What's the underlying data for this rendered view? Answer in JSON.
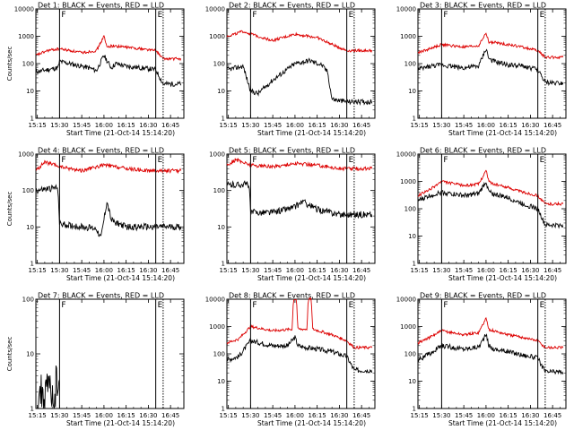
{
  "colors": {
    "events": "#000000",
    "lld": "#dd0000",
    "axis": "#000000",
    "background": "#ffffff"
  },
  "chart_data": [
    {
      "type": "line",
      "title": "Det 1: BLACK = Events, RED = LLD",
      "xlabel": "Start Time (21-Oct-14 15:14:20)",
      "ylabel": "Counts/sec",
      "xticks": [
        "15:15",
        "15:30",
        "15:45",
        "16:00",
        "16:15",
        "16:30",
        "16:45"
      ],
      "yticks": [
        "1",
        "10",
        "100",
        "1000",
        "10000"
      ],
      "yscale": "log",
      "ylim": [
        1,
        10000
      ],
      "xlim_minutes": [
        "15:14",
        "16:54"
      ],
      "markers": [
        {
          "time": "15:30",
          "label": "F",
          "style": "solid"
        },
        {
          "time": "16:35",
          "label": "E",
          "style": "solid"
        },
        {
          "time": "16:40",
          "label": "",
          "style": "dotted"
        }
      ],
      "series": [
        {
          "name": "Events",
          "color": "#000000",
          "x": [
            "15:14",
            "15:22",
            "15:29",
            "15:30",
            "15:50",
            "15:55",
            "16:00",
            "16:02",
            "16:05",
            "16:08",
            "16:15",
            "16:25",
            "16:35",
            "16:40",
            "16:52"
          ],
          "values": [
            50,
            60,
            70,
            120,
            70,
            55,
            200,
            130,
            70,
            100,
            80,
            70,
            60,
            18,
            18
          ]
        },
        {
          "name": "LLD",
          "color": "#dd0000",
          "x": [
            "15:14",
            "15:22",
            "15:30",
            "15:45",
            "15:55",
            "16:00",
            "16:02",
            "16:05",
            "16:15",
            "16:25",
            "16:35",
            "16:40",
            "16:52"
          ],
          "values": [
            200,
            300,
            350,
            250,
            300,
            1000,
            400,
            450,
            400,
            350,
            300,
            150,
            150
          ]
        }
      ]
    },
    {
      "type": "line",
      "title": "Det 2: BLACK = Events, RED = LLD",
      "xlabel": "Start Time (21-Oct-14 15:14:20)",
      "ylabel": "",
      "xticks": [
        "15:15",
        "15:30",
        "15:45",
        "16:00",
        "16:15",
        "16:30",
        "16:45"
      ],
      "yticks": [
        "1",
        "10",
        "100",
        "1000",
        "10000"
      ],
      "yscale": "log",
      "ylim": [
        1,
        10000
      ],
      "xlim_minutes": [
        "15:14",
        "16:54"
      ],
      "markers": [
        {
          "time": "15:30",
          "label": "F",
          "style": "solid"
        },
        {
          "time": "16:35",
          "label": "E",
          "style": "solid"
        },
        {
          "time": "16:40",
          "label": "",
          "style": "dotted"
        }
      ],
      "series": [
        {
          "name": "Events",
          "color": "#000000",
          "x": [
            "15:14",
            "15:25",
            "15:30",
            "15:35",
            "15:45",
            "16:00",
            "16:10",
            "16:18",
            "16:22",
            "16:25",
            "16:35",
            "16:52"
          ],
          "values": [
            60,
            80,
            10,
            8,
            25,
            100,
            130,
            90,
            50,
            5,
            4,
            4
          ]
        },
        {
          "name": "LLD",
          "color": "#dd0000",
          "x": [
            "15:14",
            "15:25",
            "15:35",
            "15:45",
            "16:00",
            "16:15",
            "16:25",
            "16:35",
            "16:52"
          ],
          "values": [
            1000,
            1500,
            1000,
            700,
            1200,
            900,
            500,
            300,
            300
          ]
        }
      ]
    },
    {
      "type": "line",
      "title": "Det 3: BLACK = Events, RED = LLD",
      "xlabel": "Start Time (21-Oct-14 15:14:20)",
      "ylabel": "",
      "xticks": [
        "15:15",
        "15:30",
        "15:45",
        "16:00",
        "16:15",
        "16:30",
        "16:45"
      ],
      "yticks": [
        "1",
        "10",
        "100",
        "1000",
        "10000"
      ],
      "yscale": "log",
      "ylim": [
        1,
        10000
      ],
      "xlim_minutes": [
        "15:14",
        "16:54"
      ],
      "markers": [
        {
          "time": "15:30",
          "label": "F",
          "style": "solid"
        },
        {
          "time": "16:35",
          "label": "E",
          "style": "solid"
        },
        {
          "time": "16:40",
          "label": "",
          "style": "dotted"
        }
      ],
      "series": [
        {
          "name": "Events",
          "color": "#000000",
          "x": [
            "15:14",
            "15:22",
            "15:30",
            "15:45",
            "15:55",
            "16:00",
            "16:02",
            "16:05",
            "16:15",
            "16:25",
            "16:35",
            "16:40",
            "16:52"
          ],
          "values": [
            60,
            80,
            90,
            70,
            80,
            350,
            150,
            120,
            90,
            80,
            60,
            20,
            20
          ]
        },
        {
          "name": "LLD",
          "color": "#dd0000",
          "x": [
            "15:14",
            "15:22",
            "15:30",
            "15:45",
            "15:55",
            "16:00",
            "16:02",
            "16:05",
            "16:15",
            "16:25",
            "16:35",
            "16:40",
            "16:52"
          ],
          "values": [
            250,
            350,
            500,
            400,
            450,
            1300,
            600,
            600,
            500,
            400,
            300,
            170,
            170
          ]
        }
      ]
    },
    {
      "type": "line",
      "title": "Det 4: BLACK = Events, RED = LLD",
      "xlabel": "Start Time (21-Oct-14 15:14:20)",
      "ylabel": "Counts/sec",
      "xticks": [
        "15:15",
        "15:30",
        "15:45",
        "16:00",
        "16:15",
        "16:30",
        "16:45"
      ],
      "yticks": [
        "1",
        "10",
        "100",
        "1000"
      ],
      "yscale": "log",
      "ylim": [
        1,
        1000
      ],
      "xlim_minutes": [
        "15:14",
        "16:54"
      ],
      "markers": [
        {
          "time": "15:30",
          "label": "F",
          "style": "solid"
        },
        {
          "time": "16:35",
          "label": "E",
          "style": "solid"
        },
        {
          "time": "16:40",
          "label": "",
          "style": "dotted"
        }
      ],
      "series": [
        {
          "name": "Events",
          "color": "#000000",
          "x": [
            "15:14",
            "15:22",
            "15:29",
            "15:30",
            "15:45",
            "15:55",
            "15:58",
            "16:02",
            "16:05",
            "16:15",
            "16:30",
            "16:52"
          ],
          "values": [
            100,
            110,
            120,
            12,
            10,
            9,
            5,
            50,
            15,
            10,
            10,
            10
          ]
        },
        {
          "name": "LLD",
          "color": "#dd0000",
          "x": [
            "15:14",
            "15:20",
            "15:30",
            "15:45",
            "16:00",
            "16:15",
            "16:30",
            "16:52"
          ],
          "values": [
            350,
            600,
            450,
            350,
            500,
            400,
            350,
            350
          ]
        }
      ]
    },
    {
      "type": "line",
      "title": "Det 5: BLACK = Events, RED = LLD",
      "xlabel": "Start Time (21-Oct-14 15:14:20)",
      "ylabel": "",
      "xticks": [
        "15:15",
        "15:30",
        "15:45",
        "16:00",
        "16:15",
        "16:30",
        "16:45"
      ],
      "yticks": [
        "1",
        "10",
        "100",
        "1000"
      ],
      "yscale": "log",
      "ylim": [
        1,
        1000
      ],
      "xlim_minutes": [
        "15:14",
        "16:54"
      ],
      "markers": [
        {
          "time": "15:30",
          "label": "F",
          "style": "solid"
        },
        {
          "time": "16:35",
          "label": "E",
          "style": "solid"
        },
        {
          "time": "16:40",
          "label": "",
          "style": "dotted"
        }
      ],
      "series": [
        {
          "name": "Events",
          "color": "#000000",
          "x": [
            "15:14",
            "15:29",
            "15:30",
            "15:45",
            "16:00",
            "16:05",
            "16:15",
            "16:30",
            "16:52"
          ],
          "values": [
            140,
            150,
            25,
            25,
            35,
            50,
            30,
            22,
            22
          ]
        },
        {
          "name": "LLD",
          "color": "#dd0000",
          "x": [
            "15:14",
            "15:20",
            "15:30",
            "15:45",
            "16:00",
            "16:15",
            "16:30",
            "16:52"
          ],
          "values": [
            500,
            700,
            500,
            450,
            550,
            500,
            400,
            400
          ]
        }
      ]
    },
    {
      "type": "line",
      "title": "Det 6: BLACK = Events, RED = LLD",
      "xlabel": "Start Time (21-Oct-14 15:14:20)",
      "ylabel": "",
      "xticks": [
        "15:15",
        "15:30",
        "15:45",
        "16:00",
        "16:15",
        "16:30",
        "16:45"
      ],
      "yticks": [
        "1",
        "10",
        "100",
        "1000",
        "10000"
      ],
      "yscale": "log",
      "ylim": [
        1,
        10000
      ],
      "xlim_minutes": [
        "15:14",
        "16:54"
      ],
      "markers": [
        {
          "time": "15:30",
          "label": "F",
          "style": "solid"
        },
        {
          "time": "16:35",
          "label": "E",
          "style": "solid"
        },
        {
          "time": "16:40",
          "label": "",
          "style": "dotted"
        }
      ],
      "series": [
        {
          "name": "Events",
          "color": "#000000",
          "x": [
            "15:14",
            "15:22",
            "15:30",
            "15:45",
            "15:55",
            "16:00",
            "16:02",
            "16:05",
            "16:15",
            "16:25",
            "16:35",
            "16:40",
            "16:52"
          ],
          "values": [
            200,
            300,
            400,
            300,
            350,
            1000,
            400,
            350,
            250,
            150,
            100,
            25,
            25
          ]
        },
        {
          "name": "LLD",
          "color": "#dd0000",
          "x": [
            "15:14",
            "15:22",
            "15:30",
            "15:45",
            "15:55",
            "16:00",
            "16:02",
            "16:05",
            "16:15",
            "16:25",
            "16:35",
            "16:40",
            "16:52"
          ],
          "values": [
            300,
            500,
            1000,
            700,
            800,
            2500,
            1000,
            800,
            600,
            400,
            300,
            150,
            150
          ]
        }
      ]
    },
    {
      "type": "line",
      "title": "Det 7: BLACK = Events, RED = LLD",
      "xlabel": "Start Time (21-Oct-14 15:14:20)",
      "ylabel": "Counts/sec",
      "xticks": [
        "15:15",
        "15:30",
        "15:45",
        "16:00",
        "16:15",
        "16:30",
        "16:45"
      ],
      "yticks": [
        "1",
        "10",
        "100"
      ],
      "yscale": "log",
      "ylim": [
        1,
        100
      ],
      "xlim_minutes": [
        "15:14",
        "16:54"
      ],
      "markers": [
        {
          "time": "15:30",
          "label": "F",
          "style": "solid"
        },
        {
          "time": "16:35",
          "label": "E",
          "style": "solid"
        },
        {
          "time": "16:40",
          "label": "",
          "style": "dotted"
        }
      ],
      "series": [
        {
          "name": "Events",
          "color": "#000000",
          "x": [
            "15:14",
            "15:17",
            "15:20",
            "15:23",
            "15:26",
            "15:28",
            "15:29",
            "15:30"
          ],
          "values": [
            1,
            2,
            1.5,
            3,
            1,
            4,
            2,
            7
          ]
        }
      ]
    },
    {
      "type": "line",
      "title": "Det 8: BLACK = Events, RED = LLD",
      "xlabel": "Start Time (21-Oct-14 15:14:20)",
      "ylabel": "",
      "xticks": [
        "15:15",
        "15:30",
        "15:45",
        "16:00",
        "16:15",
        "16:30",
        "16:45"
      ],
      "yticks": [
        "1",
        "10",
        "100",
        "1000",
        "10000"
      ],
      "yscale": "log",
      "ylim": [
        1,
        10000
      ],
      "xlim_minutes": [
        "15:14",
        "16:54"
      ],
      "markers": [
        {
          "time": "15:30",
          "label": "F",
          "style": "solid"
        },
        {
          "time": "16:35",
          "label": "E",
          "style": "solid"
        },
        {
          "time": "16:40",
          "label": "",
          "style": "dotted"
        }
      ],
      "series": [
        {
          "name": "Events",
          "color": "#000000",
          "x": [
            "15:14",
            "15:22",
            "15:30",
            "15:45",
            "15:55",
            "16:00",
            "16:02",
            "16:05",
            "16:15",
            "16:25",
            "16:35",
            "16:40",
            "16:52"
          ],
          "values": [
            60,
            80,
            300,
            200,
            200,
            400,
            200,
            180,
            150,
            120,
            80,
            25,
            25
          ]
        },
        {
          "name": "LLD",
          "color": "#dd0000",
          "x": [
            "15:14",
            "15:22",
            "15:30",
            "15:45",
            "15:58",
            "15:59",
            "16:01",
            "16:02",
            "16:08",
            "16:09",
            "16:11",
            "16:12",
            "16:25",
            "16:35",
            "16:40",
            "16:52"
          ],
          "values": [
            250,
            350,
            1000,
            700,
            800,
            10000,
            10000,
            800,
            800,
            10000,
            10000,
            800,
            500,
            300,
            170,
            170
          ]
        }
      ]
    },
    {
      "type": "line",
      "title": "Det 9: BLACK = Events, RED = LLD",
      "xlabel": "Start Time (21-Oct-14 15:14:20)",
      "ylabel": "",
      "xticks": [
        "15:15",
        "15:30",
        "15:45",
        "16:00",
        "16:15",
        "16:30",
        "16:45"
      ],
      "yticks": [
        "1",
        "10",
        "100",
        "1000",
        "10000"
      ],
      "yscale": "log",
      "ylim": [
        1,
        10000
      ],
      "xlim_minutes": [
        "15:14",
        "16:54"
      ],
      "markers": [
        {
          "time": "15:30",
          "label": "F",
          "style": "solid"
        },
        {
          "time": "16:35",
          "label": "E",
          "style": "solid"
        },
        {
          "time": "16:40",
          "label": "",
          "style": "dotted"
        }
      ],
      "series": [
        {
          "name": "Events",
          "color": "#000000",
          "x": [
            "15:14",
            "15:22",
            "15:30",
            "15:45",
            "15:55",
            "16:00",
            "16:02",
            "16:05",
            "16:15",
            "16:25",
            "16:35",
            "16:40",
            "16:52"
          ],
          "values": [
            60,
            100,
            200,
            150,
            180,
            500,
            200,
            150,
            120,
            90,
            70,
            22,
            22
          ]
        },
        {
          "name": "LLD",
          "color": "#dd0000",
          "x": [
            "15:14",
            "15:22",
            "15:30",
            "15:45",
            "15:55",
            "16:00",
            "16:02",
            "16:05",
            "16:15",
            "16:25",
            "16:35",
            "16:40",
            "16:52"
          ],
          "values": [
            250,
            400,
            700,
            500,
            600,
            2000,
            800,
            700,
            500,
            400,
            300,
            170,
            170
          ]
        }
      ]
    }
  ]
}
